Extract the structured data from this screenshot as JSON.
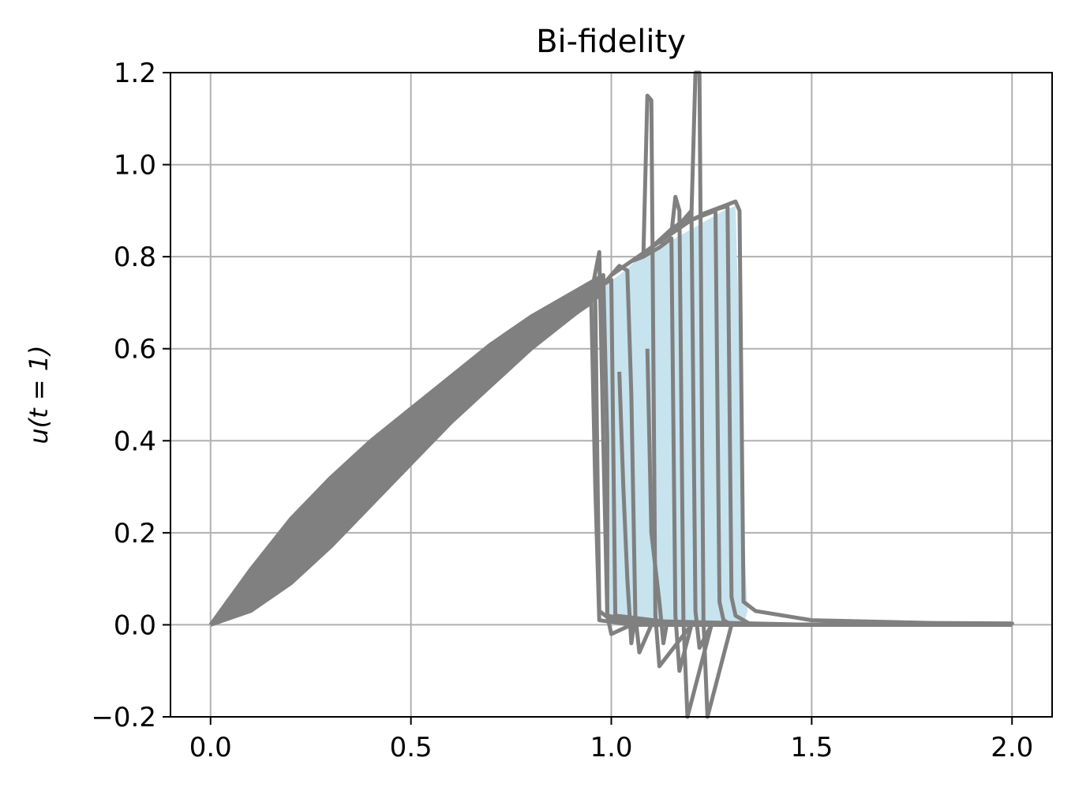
{
  "chart_data": {
    "type": "line",
    "title": "Bi-fidelity",
    "xlabel": "",
    "ylabel": "u(t = 1)",
    "xlim": [
      -0.1,
      2.1
    ],
    "ylim": [
      -0.2,
      1.2
    ],
    "xticks": [
      0.0,
      0.5,
      1.0,
      1.5,
      2.0
    ],
    "xtick_labels": [
      "0.0",
      "0.5",
      "1.0",
      "1.5",
      "2.0"
    ],
    "yticks": [
      -0.2,
      0.0,
      0.2,
      0.4,
      0.6,
      0.8,
      1.0,
      1.2
    ],
    "ytick_labels": [
      "−0.2",
      "0.0",
      "0.2",
      "0.4",
      "0.6",
      "0.8",
      "1.0",
      "1.2"
    ],
    "grid": true,
    "colors": {
      "lines": "#808080",
      "band": "#c7e3ee",
      "grid": "#b0b0b0",
      "axes": "#000000"
    },
    "band": {
      "x": [
        0.97,
        1.02,
        1.06,
        1.12,
        1.18,
        1.24,
        1.28,
        1.31,
        1.32,
        1.33,
        1.34,
        1.33,
        1.28,
        1.22,
        1.16,
        1.1,
        1.04,
        0.99
      ],
      "y": [
        0.73,
        0.76,
        0.79,
        0.82,
        0.85,
        0.88,
        0.9,
        0.91,
        0.6,
        0.2,
        0.03,
        0.0,
        0.0,
        0.0,
        0.0,
        0.0,
        0.0,
        0.0
      ]
    },
    "series": [
      {
        "x": [
          0.0,
          0.1,
          0.2,
          0.3,
          0.4,
          0.5,
          0.6,
          0.7,
          0.8,
          0.9,
          0.98,
          0.99,
          0.99,
          1.05,
          1.1,
          1.2,
          1.3,
          1.4,
          1.6,
          1.8,
          2.0
        ],
        "y": [
          0.0,
          0.12,
          0.23,
          0.32,
          0.4,
          0.47,
          0.54,
          0.61,
          0.67,
          0.72,
          0.76,
          0.4,
          0.02,
          0.01,
          0.01,
          0.0,
          0.0,
          0.0,
          0.0,
          0.0,
          0.0
        ]
      },
      {
        "x": [
          0.0,
          0.1,
          0.2,
          0.3,
          0.4,
          0.5,
          0.6,
          0.7,
          0.8,
          0.9,
          0.95,
          0.96,
          0.97,
          1.05,
          1.2,
          1.4,
          2.0
        ],
        "y": [
          0.0,
          0.03,
          0.09,
          0.17,
          0.26,
          0.35,
          0.44,
          0.52,
          0.6,
          0.67,
          0.7,
          0.3,
          0.01,
          0.0,
          0.0,
          0.0,
          0.0
        ]
      },
      {
        "x": [
          0.0,
          0.2,
          0.4,
          0.6,
          0.8,
          0.95,
          0.97,
          0.98,
          0.99,
          1.0,
          1.05,
          1.2,
          2.0
        ],
        "y": [
          0.0,
          0.2,
          0.38,
          0.52,
          0.65,
          0.72,
          0.81,
          0.4,
          0.02,
          -0.02,
          0.0,
          0.0,
          0.0
        ]
      },
      {
        "x": [
          0.98,
          1.02,
          1.04,
          1.05,
          1.06,
          1.07,
          1.1,
          1.2,
          2.0
        ],
        "y": [
          0.74,
          0.78,
          0.77,
          0.5,
          0.02,
          -0.06,
          0.0,
          0.0,
          0.0
        ]
      },
      {
        "x": [
          1.0,
          1.05,
          1.08,
          1.09,
          1.1,
          1.11,
          1.12,
          1.2,
          2.0
        ],
        "y": [
          0.76,
          0.79,
          0.8,
          1.15,
          1.14,
          0.02,
          -0.09,
          0.0,
          0.0
        ]
      },
      {
        "x": [
          1.05,
          1.1,
          1.15,
          1.16,
          1.17,
          1.18,
          1.19,
          1.25,
          2.0
        ],
        "y": [
          0.79,
          0.82,
          0.85,
          0.93,
          0.9,
          0.01,
          -0.2,
          0.0,
          0.0
        ]
      },
      {
        "x": [
          1.1,
          1.15,
          1.2,
          1.21,
          1.22,
          1.23,
          1.24,
          1.3,
          2.0
        ],
        "y": [
          0.82,
          0.86,
          0.89,
          1.2,
          1.2,
          0.01,
          -0.2,
          0.0,
          0.0
        ]
      },
      {
        "x": [
          1.08,
          1.12,
          1.15,
          1.16,
          1.17,
          1.2,
          2.0
        ],
        "y": [
          0.8,
          0.82,
          0.84,
          0.02,
          -0.1,
          0.0,
          0.0
        ]
      },
      {
        "x": [
          1.12,
          1.16,
          1.2,
          1.21,
          1.22,
          1.25,
          2.0
        ],
        "y": [
          0.83,
          0.86,
          0.9,
          0.03,
          -0.05,
          0.0,
          0.0
        ]
      },
      {
        "x": [
          1.15,
          1.2,
          1.26,
          1.27,
          1.28,
          1.3,
          2.0
        ],
        "y": [
          0.85,
          0.88,
          0.9,
          0.05,
          0.01,
          0.0,
          0.0
        ]
      },
      {
        "x": [
          1.2,
          1.25,
          1.29,
          1.3,
          1.31,
          1.35,
          2.0
        ],
        "y": [
          0.88,
          0.9,
          0.91,
          0.06,
          0.02,
          0.0,
          0.0
        ]
      },
      {
        "x": [
          1.22,
          1.28,
          1.31,
          1.32,
          1.33,
          1.36,
          1.5,
          1.8,
          2.0
        ],
        "y": [
          0.89,
          0.91,
          0.92,
          0.9,
          0.05,
          0.03,
          0.01,
          0.004,
          0.003
        ]
      },
      {
        "x": [
          1.02,
          1.03,
          1.04,
          1.05,
          1.06
        ],
        "y": [
          0.55,
          0.3,
          0.1,
          -0.04,
          0.02
        ]
      },
      {
        "x": [
          1.09,
          1.1,
          1.12,
          1.13,
          1.14
        ],
        "y": [
          0.6,
          0.2,
          0.05,
          -0.04,
          0.01
        ]
      },
      {
        "x": [
          0.0,
          0.2,
          0.4,
          0.6,
          0.8,
          0.96,
          0.97,
          1.0,
          1.5,
          2.0
        ],
        "y": [
          0.0,
          0.14,
          0.3,
          0.45,
          0.6,
          0.71,
          0.03,
          0.01,
          0.0,
          0.0
        ]
      },
      {
        "x": [
          0.0,
          0.3,
          0.6,
          0.9,
          1.0,
          1.01,
          1.2,
          2.0
        ],
        "y": [
          0.0,
          0.25,
          0.5,
          0.7,
          0.75,
          0.02,
          0.0,
          0.0
        ]
      },
      {
        "x": [
          2.0,
          2.0
        ],
        "y": [
          0.0,
          0.006
        ]
      }
    ]
  }
}
